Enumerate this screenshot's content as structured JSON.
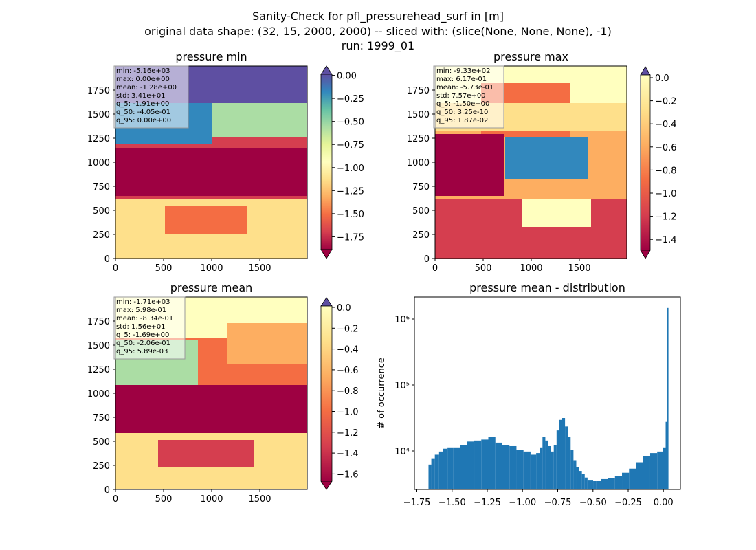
{
  "figure": {
    "title_line1": "Sanity-Check for pfl_pressurehead_surf in [m]",
    "title_line2": "original data shape: (32, 15, 2000, 2000) -- sliced with: (slice(None, None, None), -1)",
    "title_line3": "run: 1999_01"
  },
  "chart_data": [
    {
      "type": "heatmap",
      "title": "pressure min",
      "xlim": [
        0,
        2000
      ],
      "ylim": [
        0,
        2000
      ],
      "xticks": [
        0,
        500,
        1000,
        1500
      ],
      "yticks": [
        0,
        250,
        500,
        750,
        1000,
        1250,
        1500,
        1750
      ],
      "colormap": "Spectral",
      "colorbar": {
        "range": [
          -1.9,
          0.0
        ],
        "ticks": [
          "0.00",
          "−0.25",
          "−0.50",
          "−0.75",
          "−1.00",
          "−1.25",
          "−1.50",
          "−1.75"
        ],
        "extend": "both"
      },
      "stats": [
        "min: -5.16e+03",
        "max: 0.00e+00",
        "mean: -1.28e+00",
        "std: 3.41e+01",
        "q_5: -1.91e+00",
        "q_50: -4.05e-01",
        "q_95: 0.00e+00"
      ]
    },
    {
      "type": "heatmap",
      "title": "pressure max",
      "xlim": [
        0,
        2000
      ],
      "ylim": [
        0,
        2000
      ],
      "xticks": [
        0,
        500,
        1000,
        1500
      ],
      "yticks": [
        0,
        250,
        500,
        750,
        1000,
        1250,
        1500,
        1750
      ],
      "colormap": "Spectral",
      "colorbar": {
        "range": [
          -1.5,
          0.0
        ],
        "ticks": [
          "0.0",
          "−0.2",
          "−0.4",
          "−0.6",
          "−0.8",
          "−1.0",
          "−1.2",
          "−1.4"
        ],
        "extend": "both"
      },
      "stats": [
        "min: -9.33e+02",
        "max: 6.17e-01",
        "mean: -5.73e-01",
        "std: 7.57e+00",
        "q_5: -1.50e+00",
        "q_50: 3.25e-10",
        "q_95: 1.87e-02"
      ]
    },
    {
      "type": "heatmap",
      "title": "pressure mean",
      "xlim": [
        0,
        2000
      ],
      "ylim": [
        0,
        2000
      ],
      "xticks": [
        0,
        500,
        1000,
        1500
      ],
      "yticks": [
        0,
        250,
        500,
        750,
        1000,
        1250,
        1500,
        1750
      ],
      "colormap": "Spectral",
      "colorbar": {
        "range": [
          -1.7,
          0.0
        ],
        "ticks": [
          "0.0",
          "−0.2",
          "−0.4",
          "−0.6",
          "−0.8",
          "−1.0",
          "−1.2",
          "−1.4",
          "−1.6"
        ],
        "extend": "both"
      },
      "stats": [
        "min: -1.71e+03",
        "max: 5.98e-01",
        "mean: -8.34e-01",
        "std: 1.56e+01",
        "q_5: -1.69e+00",
        "q_50: -2.06e-01",
        "q_95: 5.89e-03"
      ]
    },
    {
      "type": "bar",
      "title": "pressure mean - distribution",
      "xlabel": "",
      "ylabel": "# of occurrence",
      "yscale": "log",
      "xlim": [
        -1.8,
        0.09
      ],
      "ylim": [
        2500,
        2200000
      ],
      "xticks": [
        "−1.75",
        "−1.50",
        "−1.25",
        "−1.00",
        "−0.75",
        "−0.50",
        "−0.25",
        "0.00"
      ],
      "yticks": [
        "10⁴",
        "10⁵",
        "10⁶"
      ],
      "color": "#1f77b4",
      "bin_centers": [
        -1.69,
        -1.67,
        -1.64,
        -1.61,
        -1.58,
        -1.55,
        -1.5,
        -1.45,
        -1.4,
        -1.35,
        -1.3,
        -1.25,
        -1.2,
        -1.15,
        -1.1,
        -1.05,
        -1.0,
        -0.95,
        -0.92,
        -0.9,
        -0.88,
        -0.86,
        -0.84,
        -0.82,
        -0.8,
        -0.78,
        -0.76,
        -0.74,
        -0.72,
        -0.7,
        -0.68,
        -0.66,
        -0.64,
        -0.62,
        -0.6,
        -0.58,
        -0.56,
        -0.54,
        -0.52,
        -0.5,
        -0.45,
        -0.4,
        -0.35,
        -0.3,
        -0.25,
        -0.2,
        -0.15,
        -0.1,
        -0.05,
        -0.02,
        -0.01,
        0.0
      ],
      "counts": [
        6000,
        7500,
        8500,
        9500,
        10500,
        11000,
        11000,
        12000,
        13500,
        14000,
        14500,
        16000,
        13000,
        12000,
        11500,
        10000,
        9500,
        8500,
        9000,
        11000,
        16000,
        14000,
        11500,
        9500,
        12000,
        20000,
        29000,
        31000,
        23000,
        16000,
        10000,
        7000,
        5500,
        4800,
        4300,
        3800,
        3500,
        3500,
        3400,
        3400,
        3600,
        3700,
        4000,
        4500,
        5200,
        6500,
        8000,
        9000,
        9500,
        11000,
        27000,
        1500000
      ]
    }
  ]
}
